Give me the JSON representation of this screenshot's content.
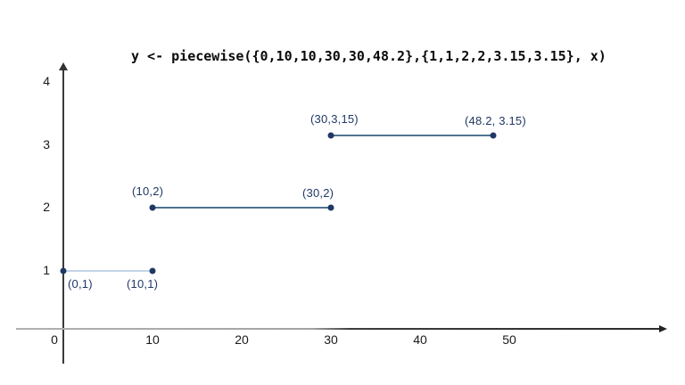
{
  "colors": {
    "point": "#1f3864",
    "point_label": "#1f3864",
    "segment_line": "#4f7392",
    "segment_line_light": "#c3d5e8",
    "y_axis": "#3a3a3a",
    "x_axis_gray": "#a8a8a8",
    "x_axis_dark": "#2c2c2c"
  },
  "chart_data": {
    "type": "line",
    "subtype": "piecewise-step-segments",
    "title": "y <- piecewise({0,10,10,30,30,48.2},{1,1,2,2,3.15,3.15}, x)",
    "xlabel": "",
    "ylabel": "",
    "xlim": [
      0,
      60
    ],
    "ylim": [
      0,
      4
    ],
    "grid": false,
    "legend": false,
    "x_ticks": [
      {
        "v": 0,
        "label": "0"
      },
      {
        "v": 10,
        "label": "10"
      },
      {
        "v": 20,
        "label": "20"
      },
      {
        "v": 30,
        "label": "30"
      },
      {
        "v": 40,
        "label": "40"
      },
      {
        "v": 50,
        "label": "50"
      }
    ],
    "y_ticks": [
      {
        "v": 1,
        "label": "1"
      },
      {
        "v": 2,
        "label": "2"
      },
      {
        "v": 3,
        "label": "3"
      },
      {
        "v": 4,
        "label": "4"
      }
    ],
    "segments": [
      {
        "points": [
          [
            0,
            1
          ],
          [
            10,
            1
          ]
        ],
        "start_label": "(0,1)",
        "end_label": "(10,1)",
        "label_position": "below",
        "line_color": "#c3d5e8"
      },
      {
        "points": [
          [
            10,
            2
          ],
          [
            30,
            2
          ]
        ],
        "start_label": "(10,2)",
        "end_label": "(30,2)",
        "label_position": "above",
        "line_color": "#4f7392"
      },
      {
        "points": [
          [
            30,
            3.15
          ],
          [
            48.2,
            3.15
          ]
        ],
        "start_label": "(30,3,15)",
        "end_label": "(48.2, 3.15)",
        "label_position": "above",
        "line_color": "#4f7392"
      }
    ]
  }
}
